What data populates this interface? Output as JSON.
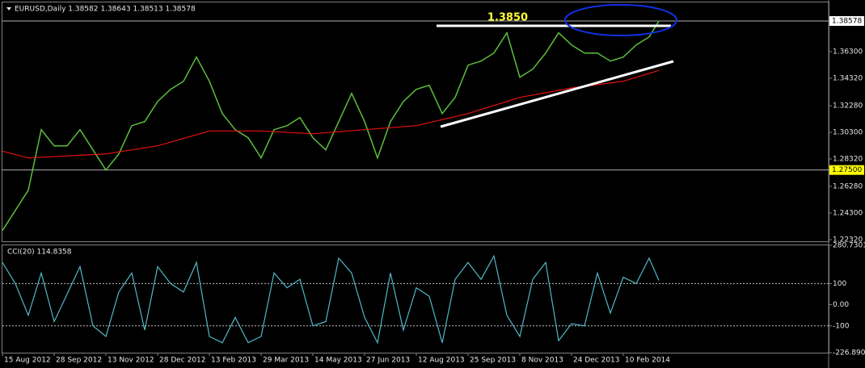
{
  "chart_data": [
    {
      "type": "line",
      "title": "EURUSD,Daily  1.38582 1.38643 1.38513 1.38578",
      "annotation": "1.3850",
      "xlim": [
        0,
        511
      ],
      "ylim": [
        1.2214,
        1.4014
      ],
      "yticks": [
        {
          "value": 1.363,
          "label": "1.36300"
        },
        {
          "value": 1.3432,
          "label": "1.34320"
        },
        {
          "value": 1.3228,
          "label": "1.32280"
        },
        {
          "value": 1.303,
          "label": "1.30300"
        },
        {
          "value": 1.2832,
          "label": "1.28320"
        },
        {
          "value": 1.2628,
          "label": "1.26280"
        },
        {
          "value": 1.243,
          "label": "1.24300"
        },
        {
          "value": 1.2232,
          "label": "1.22320"
        }
      ],
      "hlines": [
        {
          "value": 1.38578,
          "label": "1.38578",
          "color": "#ffffff"
        },
        {
          "value": 1.275,
          "label": "1.27500",
          "color": "#ffff00"
        }
      ],
      "series": [
        {
          "color": "#5cbe3c",
          "x": [
            0,
            8,
            16,
            24,
            32,
            40,
            48,
            56,
            64,
            72,
            80,
            88,
            96,
            104,
            112,
            120,
            128,
            136,
            144,
            152,
            160,
            168,
            176,
            184,
            192,
            200,
            208,
            216,
            224,
            232,
            240,
            248,
            256,
            264,
            272,
            280,
            288,
            296,
            304,
            312,
            320,
            328,
            336,
            344,
            352,
            360,
            368,
            376,
            384,
            392,
            400,
            406
          ],
          "values": [
            1.23,
            1.245,
            1.26,
            1.305,
            1.293,
            1.293,
            1.305,
            1.29,
            1.275,
            1.287,
            1.308,
            1.311,
            1.326,
            1.335,
            1.341,
            1.359,
            1.341,
            1.317,
            1.305,
            1.299,
            1.284,
            1.305,
            1.308,
            1.314,
            1.299,
            1.29,
            1.311,
            1.332,
            1.311,
            1.284,
            1.311,
            1.326,
            1.335,
            1.338,
            1.317,
            1.329,
            1.353,
            1.356,
            1.362,
            1.377,
            1.344,
            1.35,
            1.362,
            1.377,
            1.368,
            1.362,
            1.362,
            1.356,
            1.359,
            1.368,
            1.374,
            1.38578
          ]
        },
        {
          "color": "#e81010",
          "x": [
            0,
            16,
            64,
            96,
            128,
            160,
            192,
            224,
            256,
            288,
            320,
            352,
            384,
            406
          ],
          "values": [
            1.289,
            1.284,
            1.287,
            1.293,
            1.304,
            1.304,
            1.302,
            1.305,
            1.308,
            1.317,
            1.329,
            1.336,
            1.341,
            1.349
          ]
        }
      ]
    },
    {
      "type": "line",
      "title": "CCI(20) 114.8358",
      "xlim": [
        0,
        511
      ],
      "ylim": [
        -226.8905,
        280.7301
      ],
      "yticks": [
        {
          "value": 280.7301,
          "label": "280.7301"
        },
        100,
        {
          "value": 0,
          "label": "0.00"
        },
        -100,
        {
          "value": -226.8905,
          "label": "-226.8905"
        }
      ],
      "levels": [
        100,
        -100
      ],
      "xticks": [
        {
          "value": 0,
          "label": "15 Aug 2012"
        },
        {
          "value": 32,
          "label": "28 Sep 2012"
        },
        {
          "value": 64,
          "label": "13 Nov 2012"
        },
        {
          "value": 96,
          "label": "28 Dec 2012"
        },
        {
          "value": 128,
          "label": "13 Feb 2013"
        },
        {
          "value": 160,
          "label": "29 Mar 2013"
        },
        {
          "value": 192,
          "label": "14 May 2013"
        },
        {
          "value": 224,
          "label": "27 Jun 2013"
        },
        {
          "value": 256,
          "label": "12 Aug 2013"
        },
        {
          "value": 288,
          "label": "25 Sep 2013"
        },
        {
          "value": 320,
          "label": "8 Nov 2013"
        },
        {
          "value": 352,
          "label": "24 Dec 2013"
        },
        {
          "value": 384,
          "label": "10 Feb 2014"
        }
      ],
      "series": [
        {
          "color": "#4fb8c6",
          "x": [
            0,
            8,
            16,
            24,
            32,
            40,
            48,
            56,
            64,
            72,
            80,
            88,
            96,
            104,
            112,
            120,
            128,
            136,
            144,
            152,
            160,
            168,
            176,
            184,
            192,
            200,
            208,
            216,
            224,
            232,
            240,
            248,
            256,
            264,
            272,
            280,
            288,
            296,
            304,
            312,
            320,
            328,
            336,
            344,
            352,
            360,
            368,
            376,
            384,
            392,
            400,
            406
          ],
          "values": [
            200,
            100,
            -50,
            150,
            -80,
            50,
            180,
            -100,
            -150,
            60,
            150,
            -120,
            180,
            100,
            60,
            200,
            -150,
            -180,
            -60,
            -180,
            -150,
            150,
            80,
            120,
            -100,
            -80,
            220,
            150,
            -60,
            -180,
            150,
            -120,
            80,
            40,
            -180,
            120,
            200,
            120,
            230,
            -50,
            -150,
            120,
            200,
            -170,
            -90,
            -100,
            150,
            -40,
            130,
            100,
            220,
            114.8358
          ]
        }
      ]
    }
  ]
}
